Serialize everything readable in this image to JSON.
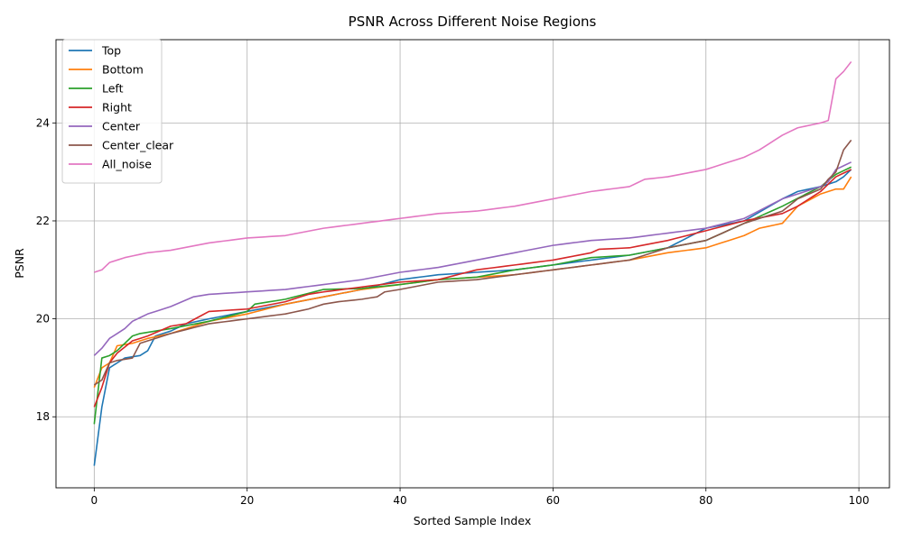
{
  "chart_data": {
    "type": "line",
    "title": "PSNR Across Different Noise Regions",
    "xlabel": "Sorted Sample Index",
    "ylabel": "PSNR",
    "xlim": [
      -5,
      104
    ],
    "ylim": [
      16.55,
      25.7
    ],
    "xticks": [
      0,
      20,
      40,
      60,
      80,
      100
    ],
    "yticks": [
      18,
      20,
      22,
      24
    ],
    "grid": true,
    "legend_position": "top-left",
    "x_count": 100,
    "series": [
      {
        "name": "Top",
        "color": "#1f77b4",
        "anchors": [
          [
            0,
            17.0
          ],
          [
            1,
            18.2
          ],
          [
            2,
            19.0
          ],
          [
            3,
            19.1
          ],
          [
            4,
            19.2
          ],
          [
            6,
            19.25
          ],
          [
            7,
            19.35
          ],
          [
            8,
            19.65
          ],
          [
            10,
            19.75
          ],
          [
            12,
            19.9
          ],
          [
            15,
            20.0
          ],
          [
            20,
            20.15
          ],
          [
            25,
            20.3
          ],
          [
            30,
            20.45
          ],
          [
            35,
            20.6
          ],
          [
            40,
            20.8
          ],
          [
            45,
            20.9
          ],
          [
            50,
            20.95
          ],
          [
            55,
            21.0
          ],
          [
            60,
            21.1
          ],
          [
            65,
            21.2
          ],
          [
            70,
            21.3
          ],
          [
            75,
            21.45
          ],
          [
            80,
            21.85
          ],
          [
            85,
            22.0
          ],
          [
            90,
            22.45
          ],
          [
            92,
            22.6
          ],
          [
            95,
            22.7
          ],
          [
            97,
            22.8
          ],
          [
            98,
            22.9
          ],
          [
            99,
            23.05
          ]
        ]
      },
      {
        "name": "Bottom",
        "color": "#ff7f0e",
        "anchors": [
          [
            0,
            18.6
          ],
          [
            1,
            19.0
          ],
          [
            2,
            19.1
          ],
          [
            3,
            19.45
          ],
          [
            5,
            19.5
          ],
          [
            7,
            19.6
          ],
          [
            10,
            19.7
          ],
          [
            15,
            19.95
          ],
          [
            20,
            20.1
          ],
          [
            25,
            20.3
          ],
          [
            30,
            20.45
          ],
          [
            35,
            20.6
          ],
          [
            40,
            20.7
          ],
          [
            45,
            20.8
          ],
          [
            50,
            20.85
          ],
          [
            55,
            20.9
          ],
          [
            60,
            21.0
          ],
          [
            65,
            21.1
          ],
          [
            70,
            21.2
          ],
          [
            75,
            21.35
          ],
          [
            80,
            21.45
          ],
          [
            82,
            21.55
          ],
          [
            85,
            21.7
          ],
          [
            87,
            21.85
          ],
          [
            90,
            21.95
          ],
          [
            92,
            22.3
          ],
          [
            95,
            22.55
          ],
          [
            97,
            22.65
          ],
          [
            98,
            22.65
          ],
          [
            99,
            22.9
          ]
        ]
      },
      {
        "name": "Left",
        "color": "#2ca02c",
        "anchors": [
          [
            0,
            17.85
          ],
          [
            1,
            19.2
          ],
          [
            2,
            19.25
          ],
          [
            3,
            19.35
          ],
          [
            4,
            19.5
          ],
          [
            5,
            19.65
          ],
          [
            6,
            19.7
          ],
          [
            8,
            19.75
          ],
          [
            10,
            19.8
          ],
          [
            15,
            19.95
          ],
          [
            20,
            20.15
          ],
          [
            21,
            20.3
          ],
          [
            25,
            20.4
          ],
          [
            30,
            20.6
          ],
          [
            35,
            20.62
          ],
          [
            40,
            20.7
          ],
          [
            45,
            20.8
          ],
          [
            50,
            20.85
          ],
          [
            55,
            21.0
          ],
          [
            60,
            21.1
          ],
          [
            65,
            21.25
          ],
          [
            70,
            21.3
          ],
          [
            75,
            21.45
          ],
          [
            80,
            21.6
          ],
          [
            85,
            21.95
          ],
          [
            90,
            22.3
          ],
          [
            95,
            22.7
          ],
          [
            97,
            22.95
          ],
          [
            99,
            23.1
          ]
        ]
      },
      {
        "name": "Right",
        "color": "#d62728",
        "anchors": [
          [
            0,
            18.2
          ],
          [
            1,
            18.6
          ],
          [
            2,
            19.1
          ],
          [
            3,
            19.3
          ],
          [
            5,
            19.55
          ],
          [
            7,
            19.65
          ],
          [
            10,
            19.85
          ],
          [
            12,
            19.9
          ],
          [
            15,
            20.15
          ],
          [
            20,
            20.2
          ],
          [
            25,
            20.35
          ],
          [
            28,
            20.5
          ],
          [
            30,
            20.55
          ],
          [
            35,
            20.65
          ],
          [
            40,
            20.75
          ],
          [
            45,
            20.8
          ],
          [
            50,
            21.0
          ],
          [
            55,
            21.1
          ],
          [
            60,
            21.2
          ],
          [
            65,
            21.35
          ],
          [
            66,
            21.42
          ],
          [
            70,
            21.45
          ],
          [
            75,
            21.6
          ],
          [
            80,
            21.8
          ],
          [
            85,
            22.0
          ],
          [
            90,
            22.15
          ],
          [
            92,
            22.3
          ],
          [
            95,
            22.6
          ],
          [
            97,
            22.9
          ],
          [
            99,
            23.05
          ]
        ]
      },
      {
        "name": "Center",
        "color": "#9467bd",
        "anchors": [
          [
            0,
            19.25
          ],
          [
            1,
            19.4
          ],
          [
            2,
            19.6
          ],
          [
            4,
            19.8
          ],
          [
            5,
            19.95
          ],
          [
            7,
            20.1
          ],
          [
            10,
            20.25
          ],
          [
            13,
            20.45
          ],
          [
            15,
            20.5
          ],
          [
            20,
            20.55
          ],
          [
            25,
            20.6
          ],
          [
            30,
            20.7
          ],
          [
            35,
            20.8
          ],
          [
            40,
            20.95
          ],
          [
            45,
            21.05
          ],
          [
            50,
            21.2
          ],
          [
            55,
            21.35
          ],
          [
            60,
            21.5
          ],
          [
            65,
            21.6
          ],
          [
            70,
            21.65
          ],
          [
            75,
            21.75
          ],
          [
            80,
            21.85
          ],
          [
            85,
            22.05
          ],
          [
            90,
            22.45
          ],
          [
            95,
            22.7
          ],
          [
            96,
            22.8
          ],
          [
            97,
            23.05
          ],
          [
            99,
            23.2
          ]
        ]
      },
      {
        "name": "Center_clear",
        "color": "#8c564b",
        "anchors": [
          [
            0,
            18.65
          ],
          [
            1,
            18.75
          ],
          [
            2,
            19.1
          ],
          [
            3,
            19.15
          ],
          [
            5,
            19.2
          ],
          [
            6,
            19.5
          ],
          [
            8,
            19.6
          ],
          [
            10,
            19.7
          ],
          [
            15,
            19.9
          ],
          [
            20,
            20.0
          ],
          [
            25,
            20.1
          ],
          [
            28,
            20.2
          ],
          [
            30,
            20.3
          ],
          [
            32,
            20.35
          ],
          [
            35,
            20.4
          ],
          [
            37,
            20.45
          ],
          [
            38,
            20.55
          ],
          [
            40,
            20.6
          ],
          [
            45,
            20.75
          ],
          [
            50,
            20.8
          ],
          [
            55,
            20.9
          ],
          [
            60,
            21.0
          ],
          [
            65,
            21.1
          ],
          [
            70,
            21.2
          ],
          [
            75,
            21.45
          ],
          [
            80,
            21.6
          ],
          [
            85,
            21.95
          ],
          [
            90,
            22.2
          ],
          [
            92,
            22.45
          ],
          [
            95,
            22.65
          ],
          [
            96,
            22.85
          ],
          [
            97,
            23.0
          ],
          [
            98,
            23.45
          ],
          [
            99,
            23.65
          ]
        ]
      },
      {
        "name": "All_noise",
        "color": "#e377c2",
        "anchors": [
          [
            0,
            20.95
          ],
          [
            1,
            21.0
          ],
          [
            2,
            21.15
          ],
          [
            4,
            21.25
          ],
          [
            7,
            21.35
          ],
          [
            10,
            21.4
          ],
          [
            15,
            21.55
          ],
          [
            20,
            21.65
          ],
          [
            25,
            21.7
          ],
          [
            30,
            21.85
          ],
          [
            35,
            21.95
          ],
          [
            40,
            22.05
          ],
          [
            45,
            22.15
          ],
          [
            50,
            22.2
          ],
          [
            55,
            22.3
          ],
          [
            60,
            22.45
          ],
          [
            65,
            22.6
          ],
          [
            70,
            22.7
          ],
          [
            72,
            22.85
          ],
          [
            75,
            22.9
          ],
          [
            80,
            23.05
          ],
          [
            85,
            23.3
          ],
          [
            87,
            23.45
          ],
          [
            90,
            23.75
          ],
          [
            92,
            23.9
          ],
          [
            95,
            24.0
          ],
          [
            96,
            24.05
          ],
          [
            97,
            24.9
          ],
          [
            98,
            25.05
          ],
          [
            99,
            25.25
          ]
        ]
      }
    ]
  }
}
